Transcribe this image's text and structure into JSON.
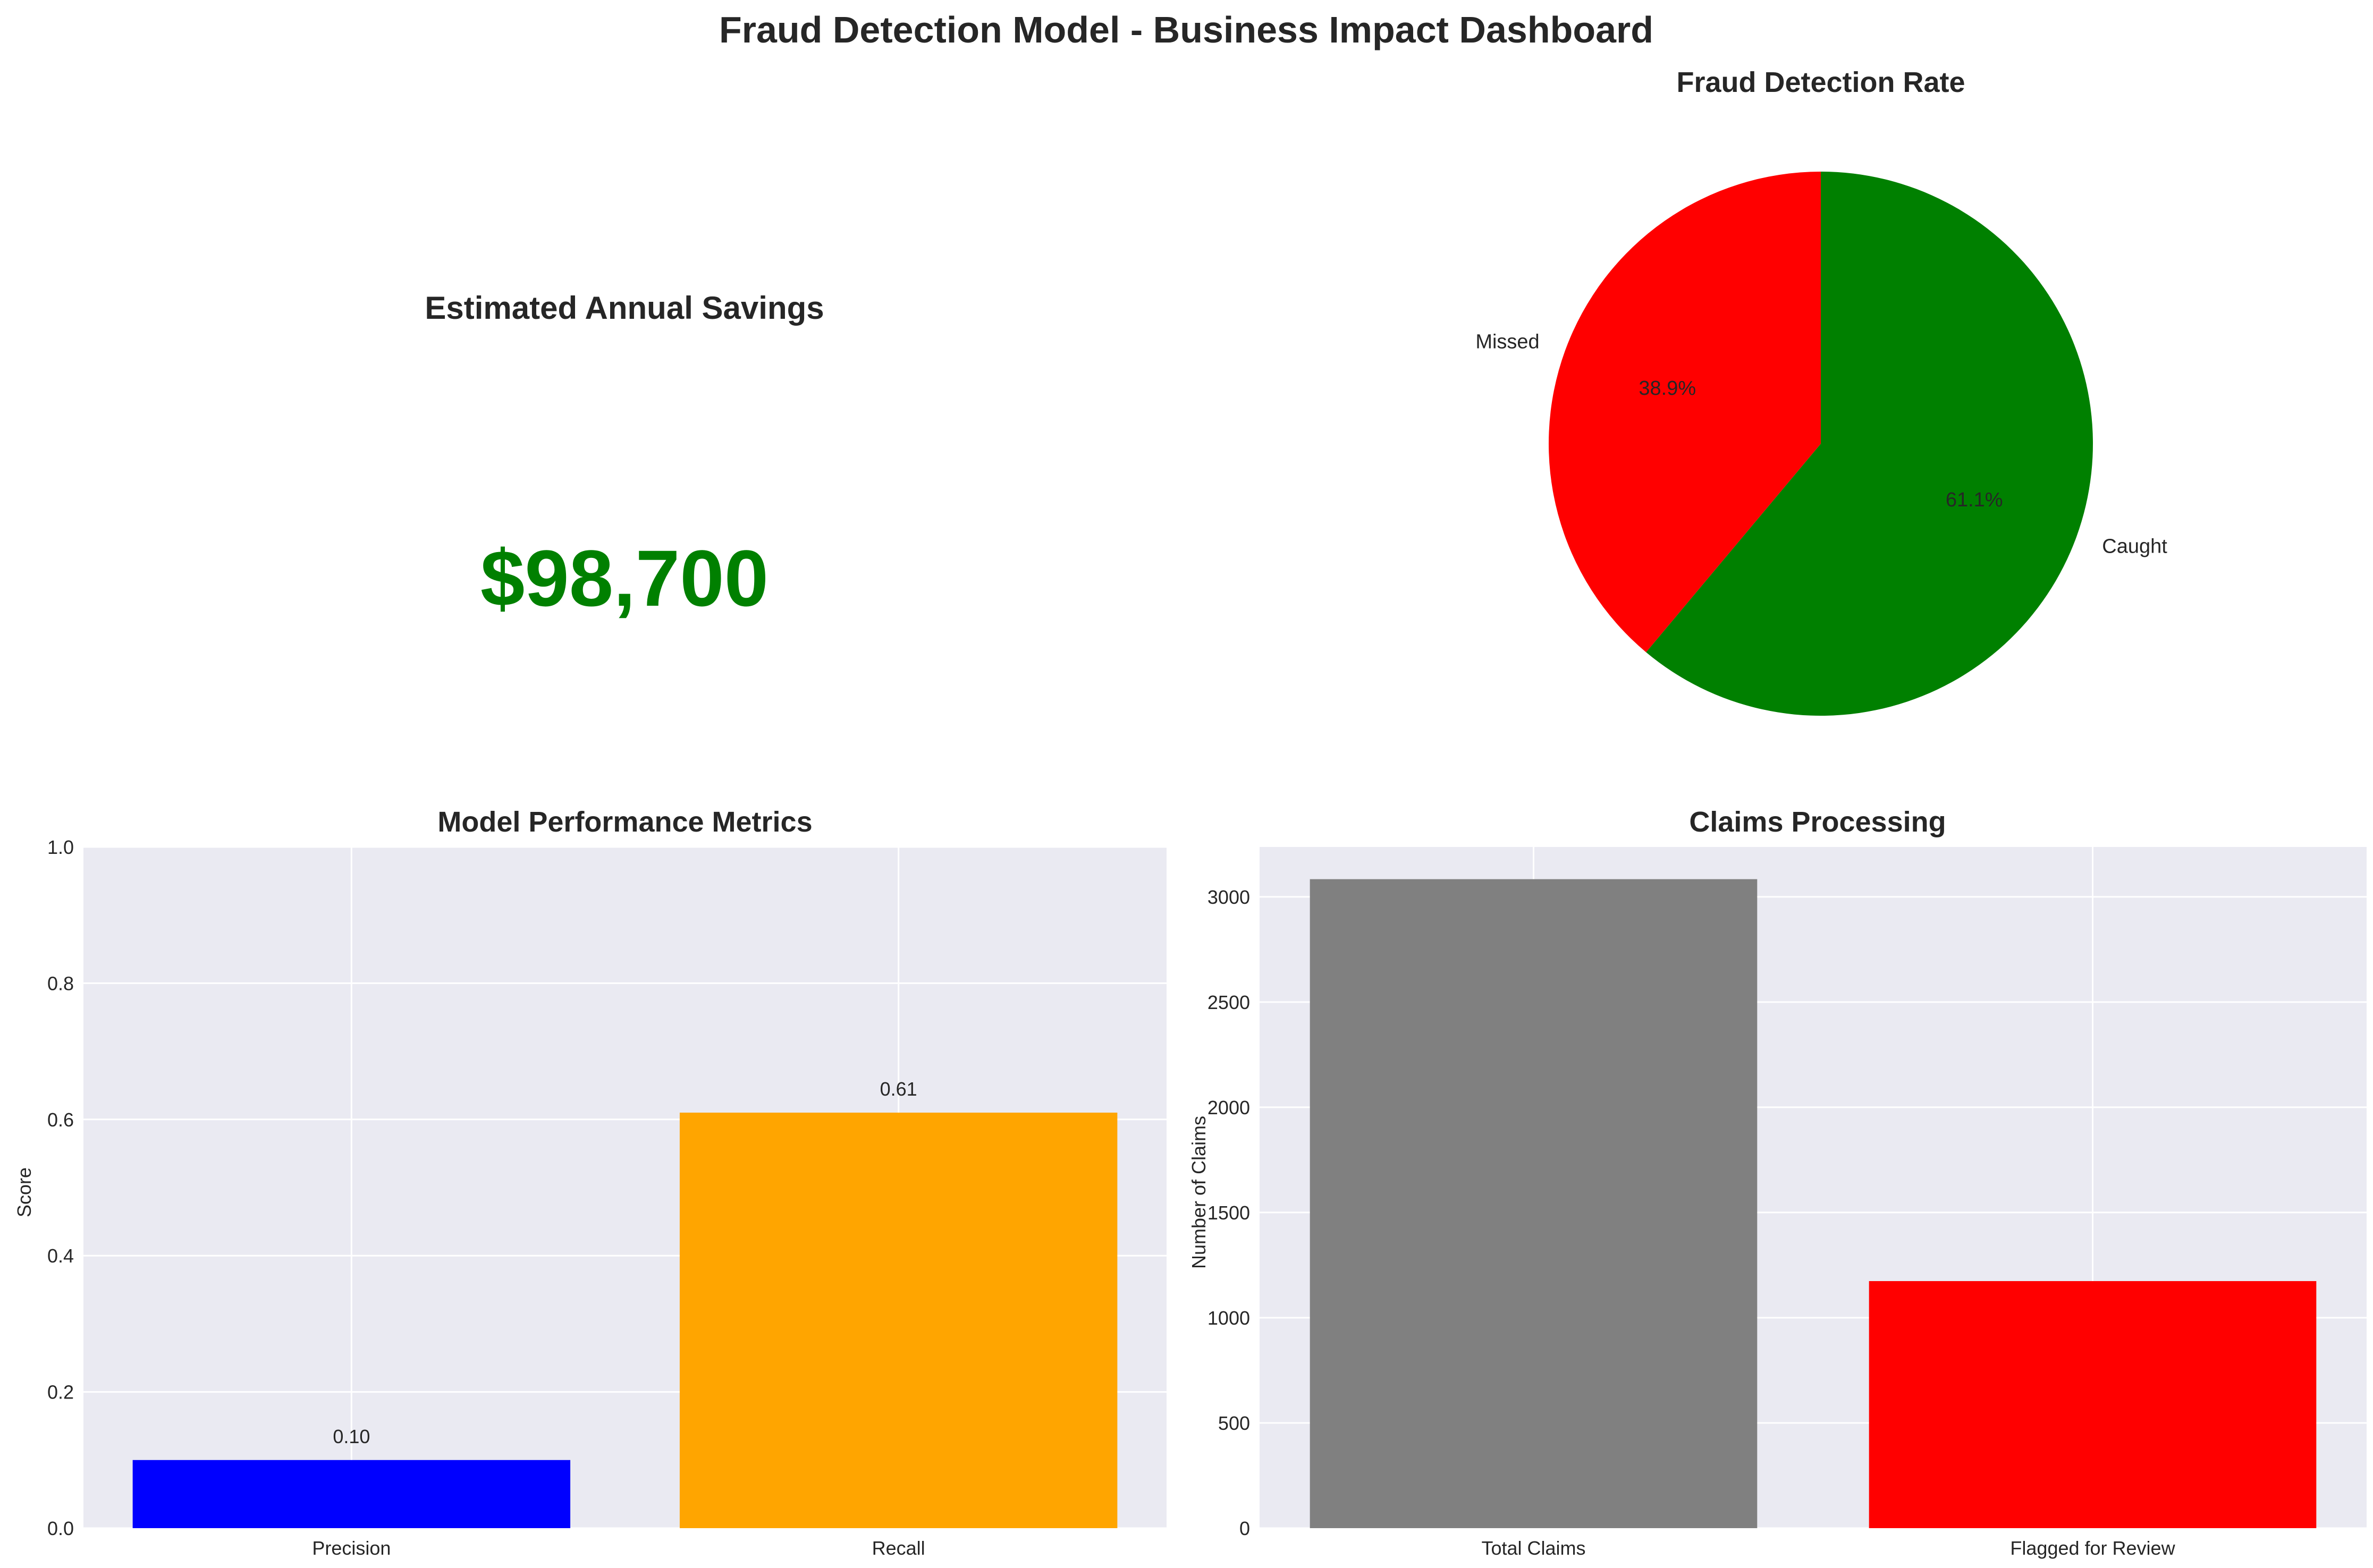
{
  "title": "Fraud Detection Model - Business Impact Dashboard",
  "colors": {
    "panel_bg": "#EAEAF2",
    "grid": "#FFFFFF",
    "text": "#262626",
    "savings": "#008000"
  },
  "kpi": {
    "title": "Estimated Annual Savings",
    "value": "$98,700"
  },
  "chart_data": [
    {
      "type": "pie",
      "title": "Fraud Detection Rate",
      "labels": [
        "Caught",
        "Missed"
      ],
      "values": [
        61.1,
        38.9
      ],
      "pct_labels": [
        "61.1%",
        "38.9%"
      ],
      "colors": [
        "#008000",
        "#FF0000"
      ],
      "start_angle_deg": 90
    },
    {
      "type": "bar",
      "title": "Model Performance Metrics",
      "categories": [
        "Precision",
        "Recall"
      ],
      "values": [
        0.1,
        0.61
      ],
      "value_labels": [
        "0.10",
        "0.61"
      ],
      "colors": [
        "#0000FF",
        "#FFA500"
      ],
      "xlabel": "",
      "ylabel": "Score",
      "ylim": [
        0,
        1.0
      ],
      "yticks": [
        0.0,
        0.2,
        0.4,
        0.6,
        0.8,
        1.0
      ],
      "ytick_labels": [
        "0.0",
        "0.2",
        "0.4",
        "0.6",
        "0.8",
        "1.0"
      ],
      "grid": true
    },
    {
      "type": "bar",
      "title": "Claims Processing",
      "categories": [
        "Total Claims",
        "Flagged for Review"
      ],
      "values": [
        3084,
        1174
      ],
      "colors": [
        "#808080",
        "#FF0000"
      ],
      "xlabel": "",
      "ylabel": "Number of Claims",
      "ylim": [
        0,
        3237
      ],
      "yticks": [
        0,
        500,
        1000,
        1500,
        2000,
        2500,
        3000
      ],
      "ytick_labels": [
        "0",
        "500",
        "1000",
        "1500",
        "2000",
        "2500",
        "3000"
      ],
      "grid": true
    }
  ]
}
